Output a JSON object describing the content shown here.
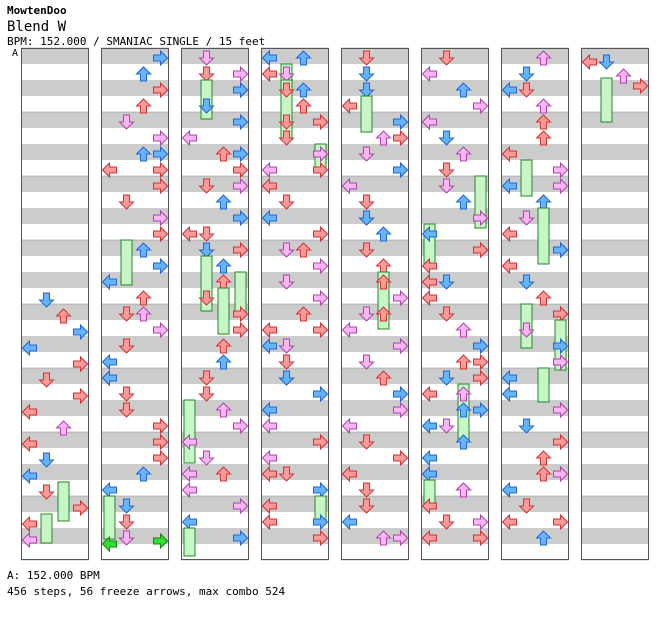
{
  "header": {
    "author": "MowtenDoo",
    "title": "Blend W",
    "info": "BPM: 152.000 / SMANIAC SINGLE / 15 feet"
  },
  "section_label": "A",
  "footer": {
    "bpm_line": "A: 152.000 BPM",
    "stats_line": "456 steps, 56 freeze arrows, max combo 524"
  },
  "colors": {
    "stripe_gray": "#cccccc",
    "border": "#555555",
    "red_arrow": "#ff9a9a",
    "blue_arrow": "#66b3ff",
    "pink_arrow": "#ffb6f5",
    "green_arrow": "#33dd33",
    "freeze": "#c8f5c8"
  },
  "icons": {
    "left": "left-arrow-icon",
    "down": "down-arrow-icon",
    "up": "up-arrow-icon",
    "right": "right-arrow-icon"
  }
}
